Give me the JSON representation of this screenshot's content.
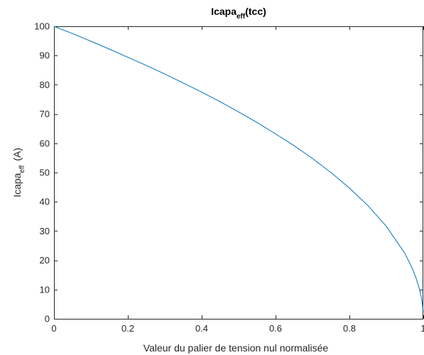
{
  "chart_data": {
    "type": "line",
    "title": {
      "base": "Icapa",
      "sub": "eff",
      "suffix": "(tcc)"
    },
    "xlabel": "Valeur du palier de tension nul normalisée",
    "ylabel": {
      "base": "Icapa",
      "sub": "eff",
      "suffix": "(A)"
    },
    "xlim": [
      0,
      1
    ],
    "ylim": [
      0,
      100
    ],
    "xticks": [
      0,
      0.2,
      0.4,
      0.6,
      0.8,
      1
    ],
    "xtick_labels": [
      "0",
      "0.2",
      "0.4",
      "0.6",
      "0.8",
      "1"
    ],
    "yticks": [
      0,
      10,
      20,
      30,
      40,
      50,
      60,
      70,
      80,
      90,
      100
    ],
    "ytick_labels": [
      "0",
      "10",
      "20",
      "30",
      "40",
      "50",
      "60",
      "70",
      "80",
      "90",
      "100"
    ],
    "grid": false,
    "box": true,
    "line_color": "#0072BD",
    "series": [
      {
        "x": [
          0,
          0.05,
          0.1,
          0.15,
          0.2,
          0.25,
          0.3,
          0.35,
          0.4,
          0.45,
          0.5,
          0.55,
          0.6,
          0.65,
          0.7,
          0.75,
          0.8,
          0.85,
          0.9,
          0.95,
          0.97,
          0.98,
          0.99,
          0.995,
          1
        ],
        "y": [
          100,
          97.5,
          94.9,
          92.2,
          89.4,
          86.6,
          83.7,
          80.6,
          77.5,
          74.2,
          70.7,
          67.1,
          63.2,
          59.2,
          54.8,
          50.0,
          44.7,
          38.7,
          31.6,
          22.4,
          17.3,
          14.1,
          10.0,
          7.1,
          2.5
        ]
      }
    ]
  }
}
